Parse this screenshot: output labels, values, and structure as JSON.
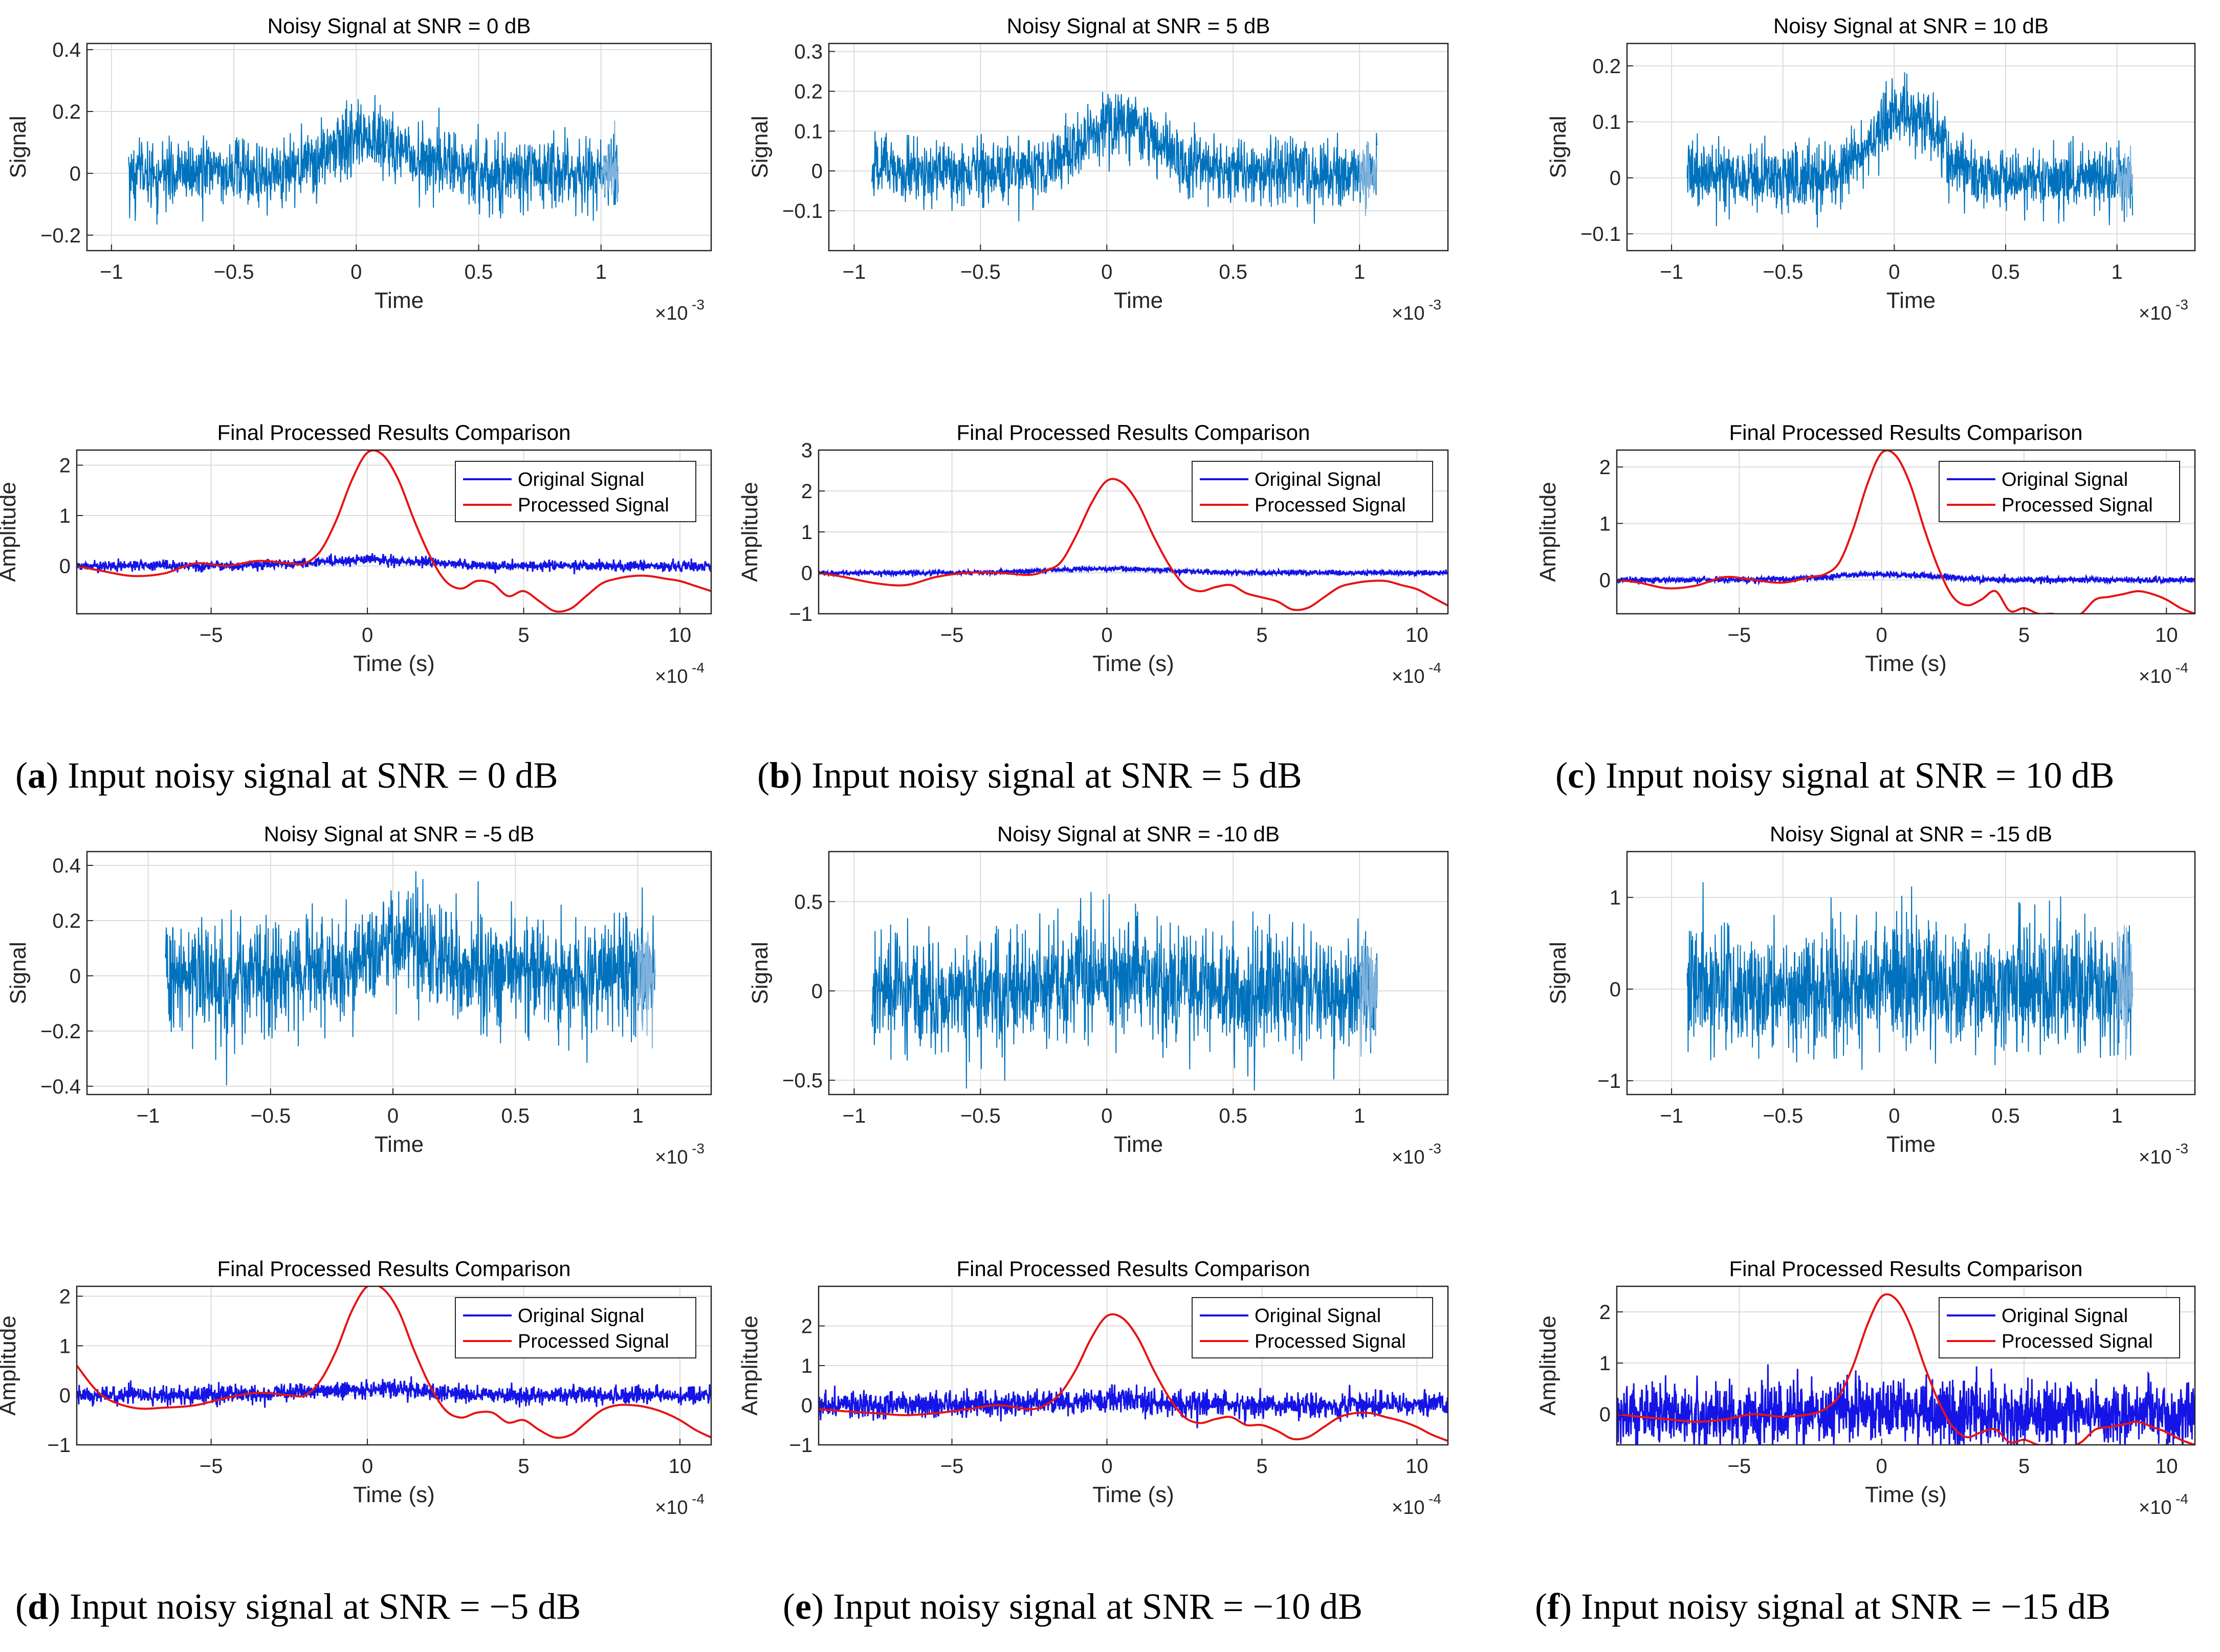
{
  "colors": {
    "noise": "#0072bd",
    "noise_light": "#7fb2dc",
    "original": "#1414e6",
    "processed": "#e61414",
    "grid": "#dcdcdc",
    "axis": "#262626"
  },
  "chart_data": [
    {
      "id": "a",
      "caption_letter": "a",
      "caption_text": "Input noisy signal at SNR = 0 dB",
      "noisy": {
        "type": "line",
        "title": "Noisy Signal at SNR = 0 dB",
        "xlabel": "Time",
        "ylabel": "Signal",
        "exponent": "×10",
        "exponent_power": "-3",
        "xlim": [
          -1.1,
          1.45
        ],
        "ylim": [
          -0.25,
          0.42
        ],
        "xticks": [
          -1,
          -0.5,
          0,
          0.5,
          1
        ],
        "xticklabels": [
          "−1",
          "−0.5",
          "0",
          "0.5",
          "1"
        ],
        "yticks": [
          -0.2,
          0,
          0.2,
          0.4
        ],
        "yticklabels": [
          "−0.2",
          "0",
          "0.2",
          "0.4"
        ],
        "signal": {
          "x_start": -0.93,
          "x_end": 1.07,
          "noise_std": 0.055,
          "peak_amplitude": 0.12,
          "peak_center": 0.05,
          "peak_width": 0.2
        }
      },
      "processed": {
        "type": "line",
        "title": "Final Processed Results Comparison",
        "xlabel": "Time (s)",
        "ylabel": "Amplitude",
        "exponent": "×10",
        "exponent_power": "-4",
        "xlim": [
          -9.3,
          11
        ],
        "ylim": [
          -0.95,
          2.3
        ],
        "xticks": [
          -5,
          0,
          5,
          10
        ],
        "xticklabels": [
          "−5",
          "0",
          "5",
          "10"
        ],
        "yticks": [
          0,
          1,
          2
        ],
        "yticklabels": [
          "0",
          "1",
          "2"
        ],
        "legend": [
          "Original Signal",
          "Processed Signal"
        ],
        "legend_position": "top-right",
        "original": {
          "noise_std": 0.05,
          "peak_amplitude": 0.12
        },
        "processed_signal": {
          "x": [
            -9.3,
            -8.5,
            -7.5,
            -6.5,
            -5.5,
            -4.5,
            -3.5,
            -2.5,
            -2,
            -1.5,
            -1,
            -0.5,
            0,
            0.5,
            1,
            1.5,
            2,
            2.5,
            3,
            3.5,
            4,
            4.5,
            5,
            5.5,
            6,
            6.5,
            7,
            7.5,
            8,
            8.5,
            9,
            9.5,
            10,
            10.5,
            11
          ],
          "y": [
            0,
            -0.1,
            -0.2,
            -0.15,
            0.05,
            0,
            0.1,
            0.05,
            0.05,
            0.3,
            0.9,
            1.7,
            2.25,
            2.2,
            1.7,
            0.9,
            0.2,
            -0.3,
            -0.45,
            -0.3,
            -0.35,
            -0.6,
            -0.5,
            -0.7,
            -0.9,
            -0.85,
            -0.6,
            -0.35,
            -0.25,
            -0.2,
            -0.2,
            -0.25,
            -0.3,
            -0.4,
            -0.5
          ]
        }
      }
    },
    {
      "id": "b",
      "caption_letter": "b",
      "caption_text": "Input noisy signal at SNR = 5 dB",
      "noisy": {
        "type": "line",
        "title": "Noisy Signal at SNR = 5 dB",
        "xlabel": "Time",
        "ylabel": "Signal",
        "exponent": "×10",
        "exponent_power": "-3",
        "xlim": [
          -1.1,
          1.35
        ],
        "ylim": [
          -0.2,
          0.32
        ],
        "xticks": [
          -1,
          -0.5,
          0,
          0.5,
          1
        ],
        "xticklabels": [
          "−1",
          "−0.5",
          "0",
          "0.5",
          "1"
        ],
        "yticks": [
          -0.1,
          0,
          0.1,
          0.2,
          0.3
        ],
        "yticklabels": [
          "−0.1",
          "0",
          "0.1",
          "0.2",
          "0.3"
        ],
        "signal": {
          "x_start": -0.93,
          "x_end": 1.07,
          "noise_std": 0.04,
          "peak_amplitude": 0.12,
          "peak_center": 0.05,
          "peak_width": 0.2
        }
      },
      "processed": {
        "type": "line",
        "title": "Final Processed Results Comparison",
        "xlabel": "Time (s)",
        "ylabel": "Amplitude",
        "exponent": "×10",
        "exponent_power": "-4",
        "xlim": [
          -9.3,
          11
        ],
        "ylim": [
          -1,
          3
        ],
        "xticks": [
          -5,
          0,
          5,
          10
        ],
        "xticklabels": [
          "−5",
          "0",
          "5",
          "10"
        ],
        "yticks": [
          -1,
          0,
          1,
          2,
          3
        ],
        "yticklabels": [
          "−1",
          "0",
          "1",
          "2",
          "3"
        ],
        "legend": [
          "Original Signal",
          "Processed Signal"
        ],
        "legend_position": "top-right",
        "original": {
          "noise_std": 0.03,
          "peak_amplitude": 0.1
        },
        "processed_signal": {
          "x": [
            -9.3,
            -8.5,
            -7.5,
            -6.5,
            -5.5,
            -4.5,
            -3.5,
            -2.5,
            -2,
            -1.5,
            -1,
            -0.5,
            0,
            0.5,
            1,
            1.5,
            2,
            2.5,
            3,
            3.5,
            4,
            4.5,
            5,
            5.5,
            6,
            6.5,
            7,
            7.5,
            8,
            8.5,
            9,
            9.5,
            10,
            10.5,
            11
          ],
          "y": [
            0,
            -0.1,
            -0.25,
            -0.3,
            -0.1,
            0,
            0,
            -0.05,
            0.05,
            0.25,
            0.9,
            1.7,
            2.25,
            2.2,
            1.7,
            0.9,
            0.2,
            -0.3,
            -0.45,
            -0.35,
            -0.3,
            -0.5,
            -0.6,
            -0.7,
            -0.9,
            -0.85,
            -0.6,
            -0.35,
            -0.25,
            -0.2,
            -0.2,
            -0.3,
            -0.4,
            -0.6,
            -0.8
          ]
        }
      }
    },
    {
      "id": "c",
      "caption_letter": "c",
      "caption_text": "Input noisy signal at SNR = 10 dB",
      "noisy": {
        "type": "line",
        "title": "Noisy Signal at SNR = 10 dB",
        "xlabel": "Time",
        "ylabel": "Signal",
        "exponent": "×10",
        "exponent_power": "-3",
        "xlim": [
          -1.2,
          1.35
        ],
        "ylim": [
          -0.13,
          0.24
        ],
        "xticks": [
          -1,
          -0.5,
          0,
          0.5,
          1
        ],
        "xticklabels": [
          "−1",
          "−0.5",
          "0",
          "0.5",
          "1"
        ],
        "yticks": [
          -0.1,
          0,
          0.1,
          0.2
        ],
        "yticklabels": [
          "−0.1",
          "0",
          "0.1",
          "0.2"
        ],
        "signal": {
          "x_start": -0.93,
          "x_end": 1.07,
          "noise_std": 0.028,
          "peak_amplitude": 0.12,
          "peak_center": 0.05,
          "peak_width": 0.2
        }
      },
      "processed": {
        "type": "line",
        "title": "Final Processed Results Comparison",
        "xlabel": "Time (s)",
        "ylabel": "Amplitude",
        "exponent": "×10",
        "exponent_power": "-4",
        "xlim": [
          -9.3,
          11
        ],
        "ylim": [
          -0.6,
          2.3
        ],
        "xticks": [
          -5,
          0,
          5,
          10
        ],
        "xticklabels": [
          "−5",
          "0",
          "5",
          "10"
        ],
        "yticks": [
          0,
          1,
          2
        ],
        "yticklabels": [
          "0",
          "1",
          "2"
        ],
        "legend": [
          "Original Signal",
          "Processed Signal"
        ],
        "legend_position": "top-right",
        "original": {
          "noise_std": 0.025,
          "peak_amplitude": 0.1
        },
        "processed_signal": {
          "x": [
            -9.3,
            -8.5,
            -7.5,
            -6.5,
            -5.5,
            -4.5,
            -3.5,
            -2.5,
            -2,
            -1.5,
            -1,
            -0.5,
            0,
            0.5,
            1,
            1.5,
            2,
            2.5,
            3,
            3.5,
            4,
            4.5,
            5,
            5.5,
            6,
            6.5,
            7,
            7.5,
            8,
            8.5,
            9,
            9.5,
            10,
            10.5,
            11
          ],
          "y": [
            0,
            -0.05,
            -0.15,
            -0.1,
            0.05,
            0,
            -0.05,
            0.05,
            0.1,
            0.3,
            0.9,
            1.7,
            2.25,
            2.2,
            1.7,
            0.9,
            0.2,
            -0.3,
            -0.45,
            -0.35,
            -0.2,
            -0.55,
            -0.5,
            -0.6,
            -0.6,
            -0.65,
            -0.6,
            -0.35,
            -0.3,
            -0.25,
            -0.2,
            -0.25,
            -0.35,
            -0.5,
            -0.6
          ]
        }
      }
    },
    {
      "id": "d",
      "caption_letter": "d",
      "caption_text": "Input noisy signal at SNR = −5 dB",
      "noisy": {
        "type": "line",
        "title": "Noisy Signal at SNR = -5 dB",
        "xlabel": "Time",
        "ylabel": "Signal",
        "exponent": "×10",
        "exponent_power": "-3",
        "xlim": [
          -1.25,
          1.3
        ],
        "ylim": [
          -0.43,
          0.45
        ],
        "xticks": [
          -1,
          -0.5,
          0,
          0.5,
          1
        ],
        "xticklabels": [
          "−1",
          "−0.5",
          "0",
          "0.5",
          "1"
        ],
        "yticks": [
          -0.4,
          -0.2,
          0,
          0.2,
          0.4
        ],
        "yticklabels": [
          "−0.4",
          "−0.2",
          "0",
          "0.2",
          "0.4"
        ],
        "signal": {
          "x_start": -0.93,
          "x_end": 1.07,
          "noise_std": 0.1,
          "peak_amplitude": 0.12,
          "peak_center": 0.05,
          "peak_width": 0.2
        }
      },
      "processed": {
        "type": "line",
        "title": "Final Processed Results Comparison",
        "xlabel": "Time (s)",
        "ylabel": "Amplitude",
        "exponent": "×10",
        "exponent_power": "-4",
        "xlim": [
          -9.3,
          11
        ],
        "ylim": [
          -1,
          2.2
        ],
        "xticks": [
          -5,
          0,
          5,
          10
        ],
        "xticklabels": [
          "−5",
          "0",
          "5",
          "10"
        ],
        "yticks": [
          -1,
          0,
          1,
          2
        ],
        "yticklabels": [
          "−1",
          "0",
          "1",
          "2"
        ],
        "legend": [
          "Original Signal",
          "Processed Signal"
        ],
        "legend_position": "top-right",
        "original": {
          "noise_std": 0.09,
          "peak_amplitude": 0.12
        },
        "processed_signal": {
          "x": [
            -9.3,
            -8.5,
            -7.5,
            -6.5,
            -5.5,
            -4.5,
            -3.5,
            -2.5,
            -2,
            -1.5,
            -1,
            -0.5,
            0,
            0.5,
            1,
            1.5,
            2,
            2.5,
            3,
            3.5,
            4,
            4.5,
            5,
            5.5,
            6,
            6.5,
            7,
            7.5,
            8,
            8.5,
            9,
            9.5,
            10,
            10.5,
            11
          ],
          "y": [
            0.6,
            0,
            -0.25,
            -0.25,
            -0.2,
            -0.05,
            0.05,
            0,
            0,
            0.3,
            0.9,
            1.7,
            2.2,
            2.15,
            1.7,
            0.9,
            0.2,
            -0.3,
            -0.45,
            -0.35,
            -0.35,
            -0.55,
            -0.5,
            -0.7,
            -0.85,
            -0.8,
            -0.55,
            -0.3,
            -0.2,
            -0.2,
            -0.25,
            -0.35,
            -0.5,
            -0.7,
            -0.85
          ]
        }
      }
    },
    {
      "id": "e",
      "caption_letter": "e",
      "caption_text": "Input noisy signal at SNR = −10 dB",
      "noisy": {
        "type": "line",
        "title": "Noisy Signal at SNR = -10 dB",
        "xlabel": "Time",
        "ylabel": "Signal",
        "exponent": "×10",
        "exponent_power": "-3",
        "xlim": [
          -1.1,
          1.35
        ],
        "ylim": [
          -0.58,
          0.78
        ],
        "xticks": [
          -1,
          -0.5,
          0,
          0.5,
          1
        ],
        "xticklabels": [
          "−1",
          "−0.5",
          "0",
          "0.5",
          "1"
        ],
        "yticks": [
          -0.5,
          0,
          0.5
        ],
        "yticklabels": [
          "−0.5",
          "0",
          "0.5"
        ],
        "signal": {
          "x_start": -0.93,
          "x_end": 1.07,
          "noise_std": 0.17,
          "peak_amplitude": 0.12,
          "peak_center": 0.05,
          "peak_width": 0.2
        }
      },
      "processed": {
        "type": "line",
        "title": "Final Processed Results Comparison",
        "xlabel": "Time (s)",
        "ylabel": "Amplitude",
        "exponent": "×10",
        "exponent_power": "-4",
        "xlim": [
          -9.3,
          11
        ],
        "ylim": [
          -1,
          3
        ],
        "xticks": [
          -5,
          0,
          5,
          10
        ],
        "xticklabels": [
          "−5",
          "0",
          "5",
          "10"
        ],
        "yticks": [
          -1,
          0,
          1,
          2
        ],
        "yticklabels": [
          "−1",
          "0",
          "1",
          "2"
        ],
        "legend": [
          "Original Signal",
          "Processed Signal"
        ],
        "legend_position": "top-right",
        "original": {
          "noise_std": 0.16,
          "peak_amplitude": 0.12
        },
        "processed_signal": {
          "x": [
            -9.3,
            -8.5,
            -7.5,
            -6.5,
            -5.5,
            -4.5,
            -3.5,
            -2.5,
            -2,
            -1.5,
            -1,
            -0.5,
            0,
            0.5,
            1,
            1.5,
            2,
            2.5,
            3,
            3.5,
            4,
            4.5,
            5,
            5.5,
            6,
            6.5,
            7,
            7.5,
            8,
            8.5,
            9,
            9.5,
            10,
            10.5,
            11
          ],
          "y": [
            -0.1,
            -0.15,
            -0.2,
            -0.25,
            -0.2,
            -0.1,
            0,
            -0.1,
            0,
            0.3,
            0.9,
            1.7,
            2.25,
            2.2,
            1.7,
            0.9,
            0.2,
            -0.3,
            -0.45,
            -0.35,
            -0.3,
            -0.5,
            -0.5,
            -0.65,
            -0.85,
            -0.8,
            -0.55,
            -0.3,
            -0.2,
            -0.2,
            -0.3,
            -0.4,
            -0.55,
            -0.75,
            -0.9
          ]
        }
      }
    },
    {
      "id": "f",
      "caption_letter": "f",
      "caption_text": "Input noisy signal at SNR = −15 dB",
      "noisy": {
        "type": "line",
        "title": "Noisy Signal at SNR = -15 dB",
        "xlabel": "Time",
        "ylabel": "Signal",
        "exponent": "×10",
        "exponent_power": "-3",
        "xlim": [
          -1.2,
          1.35
        ],
        "ylim": [
          -1.15,
          1.5
        ],
        "xticks": [
          -1,
          -0.5,
          0,
          0.5,
          1
        ],
        "xticklabels": [
          "−1",
          "−0.5",
          "0",
          "0.5",
          "1"
        ],
        "yticks": [
          -1,
          0,
          1
        ],
        "yticklabels": [
          "−1",
          "0",
          "1"
        ],
        "signal": {
          "x_start": -0.93,
          "x_end": 1.07,
          "noise_std": 0.33,
          "peak_amplitude": 0.12,
          "peak_center": 0.05,
          "peak_width": 0.2
        }
      },
      "processed": {
        "type": "line",
        "title": "Final Processed Results Comparison",
        "xlabel": "Time (s)",
        "ylabel": "Amplitude",
        "exponent": "×10",
        "exponent_power": "-4",
        "xlim": [
          -9.3,
          11
        ],
        "ylim": [
          -0.6,
          2.5
        ],
        "xticks": [
          -5,
          0,
          5,
          10
        ],
        "xticklabels": [
          "−5",
          "0",
          "5",
          "10"
        ],
        "yticks": [
          0,
          1,
          2
        ],
        "yticklabels": [
          "0",
          "1",
          "2"
        ],
        "legend": [
          "Original Signal",
          "Processed Signal"
        ],
        "legend_position": "top-right",
        "original": {
          "noise_std": 0.3,
          "peak_amplitude": 0.12
        },
        "processed_signal": {
          "x": [
            -9.3,
            -8.5,
            -7.5,
            -6.5,
            -5.5,
            -4.5,
            -3.5,
            -2.5,
            -2,
            -1.5,
            -1,
            -0.5,
            0,
            0.5,
            1,
            1.5,
            2,
            2.5,
            3,
            3.5,
            4,
            4.5,
            5,
            5.5,
            6,
            6.5,
            7,
            7.5,
            8,
            8.5,
            9,
            9.5,
            10,
            10.5,
            11
          ],
          "y": [
            0,
            -0.05,
            -0.1,
            -0.15,
            -0.1,
            0,
            -0.05,
            0,
            0.1,
            0.35,
            0.95,
            1.75,
            2.3,
            2.25,
            1.75,
            0.95,
            0.25,
            -0.25,
            -0.45,
            -0.35,
            -0.3,
            -0.55,
            -0.5,
            -0.6,
            -0.6,
            -0.65,
            -0.55,
            -0.3,
            -0.25,
            -0.2,
            -0.15,
            -0.25,
            -0.35,
            -0.5,
            -0.6
          ]
        }
      }
    }
  ]
}
